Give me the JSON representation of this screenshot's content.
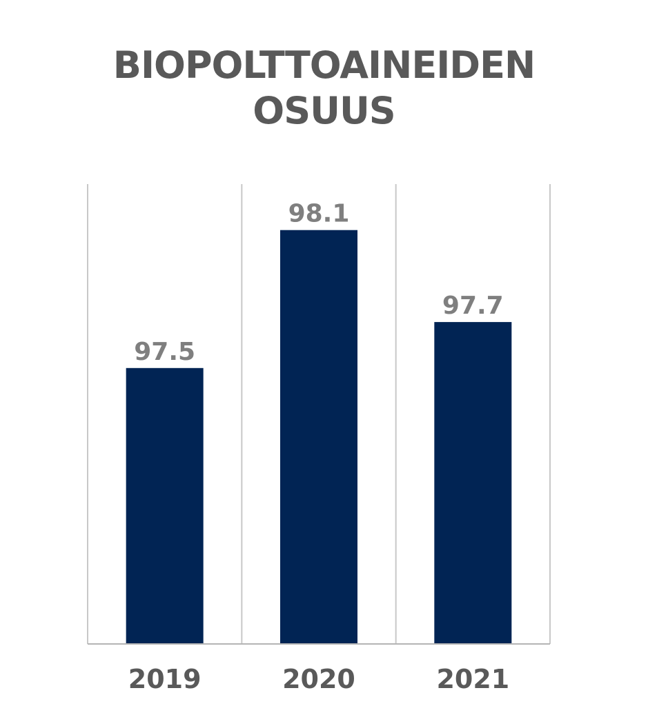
{
  "chart_data": {
    "type": "bar",
    "title_lines": [
      "BIOPOLTTOAINEIDEN",
      "OSUUS"
    ],
    "categories": [
      "2019",
      "2020",
      "2021"
    ],
    "values": [
      97.5,
      98.1,
      97.7
    ],
    "data_labels": [
      "97.5",
      "98.1",
      "97.7"
    ],
    "xlabel": "",
    "ylabel": "",
    "ylim": [
      96.3,
      98.3
    ],
    "grid": "vertical category separators",
    "legend": "none",
    "bar_color": "#012454"
  }
}
